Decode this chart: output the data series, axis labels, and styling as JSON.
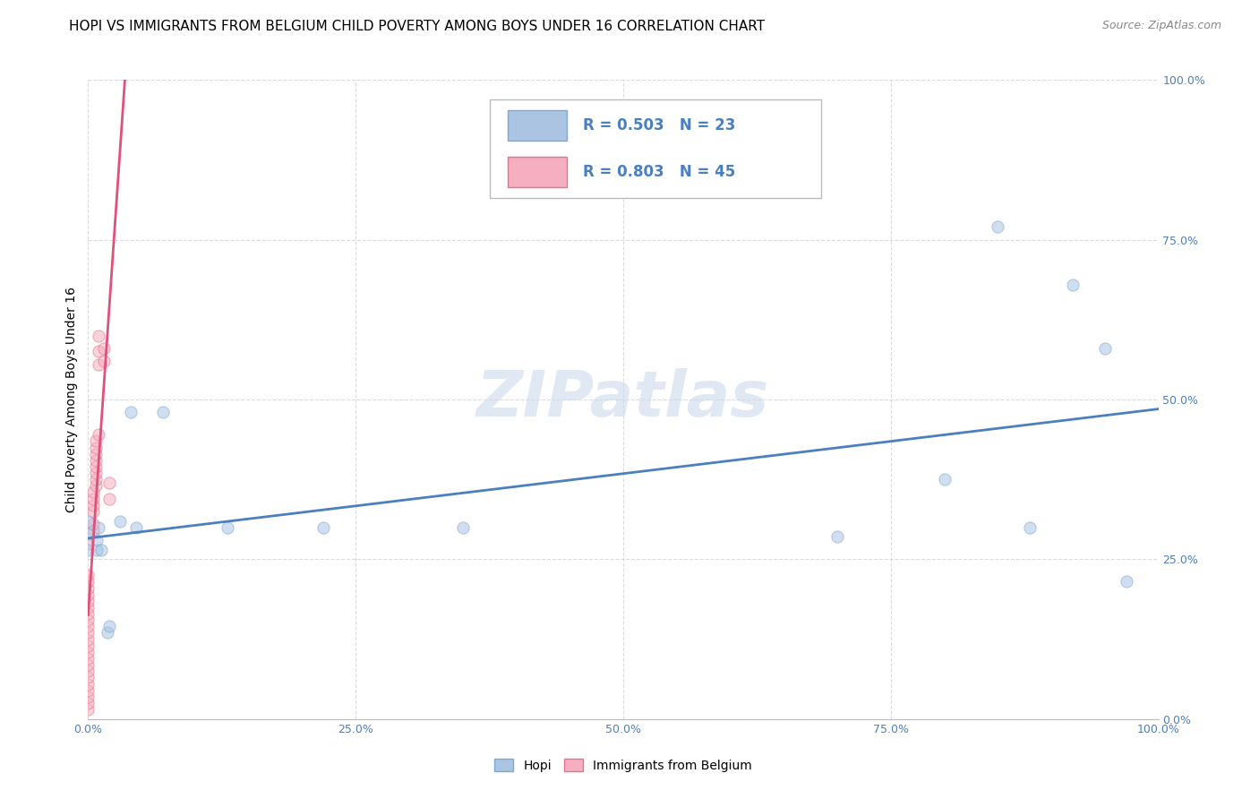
{
  "title": "HOPI VS IMMIGRANTS FROM BELGIUM CHILD POVERTY AMONG BOYS UNDER 16 CORRELATION CHART",
  "source": "Source: ZipAtlas.com",
  "ylabel": "Child Poverty Among Boys Under 16",
  "xlim": [
    0,
    1.0
  ],
  "ylim": [
    0,
    1.0
  ],
  "xticks": [
    0.0,
    0.25,
    0.5,
    0.75,
    1.0
  ],
  "yticks": [
    0.0,
    0.25,
    0.5,
    0.75,
    1.0
  ],
  "xtick_labels": [
    "0.0%",
    "25.0%",
    "50.0%",
    "75.0%",
    "100.0%"
  ],
  "ytick_labels": [
    "0.0%",
    "25.0%",
    "50.0%",
    "75.0%",
    "100.0%"
  ],
  "hopi_color": "#aac4e2",
  "belgium_color": "#f5afc0",
  "hopi_edge_color": "#7aaad4",
  "belgium_edge_color": "#e87090",
  "trend_hopi_color": "#4a7fc1",
  "trend_belgium_color": "#e0507a",
  "hopi_R": 0.503,
  "hopi_N": 23,
  "belgium_R": 0.803,
  "belgium_N": 45,
  "legend_R_color": "#4a7fc1",
  "watermark": "ZIPatlas",
  "hopi_x": [
    0.0,
    0.0,
    0.0,
    0.008,
    0.008,
    0.01,
    0.012,
    0.018,
    0.02,
    0.03,
    0.04,
    0.045,
    0.07,
    0.13,
    0.22,
    0.35,
    0.7,
    0.8,
    0.85,
    0.88,
    0.92,
    0.95,
    0.97
  ],
  "hopi_y": [
    0.31,
    0.29,
    0.265,
    0.265,
    0.28,
    0.3,
    0.265,
    0.135,
    0.145,
    0.31,
    0.48,
    0.3,
    0.48,
    0.3,
    0.3,
    0.3,
    0.285,
    0.375,
    0.77,
    0.3,
    0.68,
    0.58,
    0.215
  ],
  "belgium_x": [
    0.0,
    0.0,
    0.0,
    0.0,
    0.0,
    0.0,
    0.0,
    0.0,
    0.0,
    0.0,
    0.0,
    0.0,
    0.0,
    0.0,
    0.0,
    0.0,
    0.0,
    0.0,
    0.0,
    0.0,
    0.0,
    0.0,
    0.0,
    0.005,
    0.005,
    0.005,
    0.005,
    0.005,
    0.005,
    0.007,
    0.007,
    0.007,
    0.007,
    0.007,
    0.007,
    0.007,
    0.007,
    0.01,
    0.01,
    0.01,
    0.01,
    0.015,
    0.015,
    0.02,
    0.02
  ],
  "belgium_y": [
    0.015,
    0.025,
    0.035,
    0.045,
    0.055,
    0.065,
    0.075,
    0.085,
    0.095,
    0.105,
    0.115,
    0.125,
    0.135,
    0.145,
    0.155,
    0.165,
    0.175,
    0.185,
    0.195,
    0.205,
    0.215,
    0.225,
    0.275,
    0.295,
    0.305,
    0.325,
    0.335,
    0.345,
    0.355,
    0.365,
    0.375,
    0.385,
    0.395,
    0.405,
    0.415,
    0.425,
    0.435,
    0.445,
    0.555,
    0.575,
    0.6,
    0.56,
    0.58,
    0.345,
    0.37
  ],
  "grid_color": "#cccccc",
  "bg_color": "#ffffff",
  "marker_size": 90,
  "marker_alpha": 0.55,
  "title_fontsize": 11,
  "axis_label_fontsize": 10,
  "tick_fontsize": 9,
  "legend_fontsize": 12
}
